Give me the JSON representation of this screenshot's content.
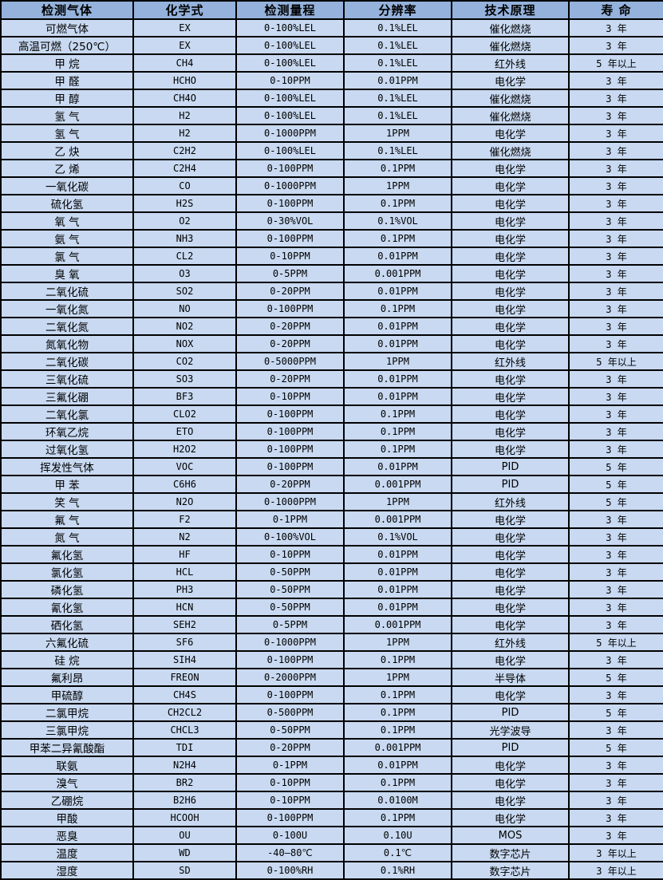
{
  "colors": {
    "header_bg": "#94b2db",
    "row_bg": "#c8d9f1",
    "border": "#000000",
    "text": "#000000"
  },
  "table": {
    "headers": [
      "检测气体",
      "化学式",
      "检测量程",
      "分辨率",
      "技术原理",
      "寿 命"
    ],
    "rows": [
      [
        "可燃气体",
        "EX",
        "0-100%LEL",
        "0.1%LEL",
        "催化燃烧",
        "3 年"
      ],
      [
        "高温可燃（250℃）",
        "EX",
        "0-100%LEL",
        "0.1%LEL",
        "催化燃烧",
        "3 年"
      ],
      [
        "甲 烷",
        "CH4",
        "0-100%LEL",
        "0.1%LEL",
        "红外线",
        "5 年以上"
      ],
      [
        "甲 醛",
        "HCHO",
        "0-10PPM",
        "0.01PPM",
        "电化学",
        "3 年"
      ],
      [
        "甲 醇",
        "CH4O",
        "0-100%LEL",
        "0.1%LEL",
        "催化燃烧",
        "3 年"
      ],
      [
        "氢 气",
        "H2",
        "0-100%LEL",
        "0.1%LEL",
        "催化燃烧",
        "3 年"
      ],
      [
        "氢 气",
        "H2",
        "0-1000PPM",
        "1PPM",
        "电化学",
        "3 年"
      ],
      [
        "乙 炔",
        "C2H2",
        "0-100%LEL",
        "0.1%LEL",
        "催化燃烧",
        "3 年"
      ],
      [
        "乙 烯",
        "C2H4",
        "0-100PPM",
        "0.1PPM",
        "电化学",
        "3 年"
      ],
      [
        "一氧化碳",
        "CO",
        "0-1000PPM",
        "1PPM",
        "电化学",
        "3 年"
      ],
      [
        "硫化氢",
        "H2S",
        "0-100PPM",
        "0.1PPM",
        "电化学",
        "3 年"
      ],
      [
        "氧 气",
        "O2",
        "0-30%VOL",
        "0.1%VOL",
        "电化学",
        "3 年"
      ],
      [
        "氨 气",
        "NH3",
        "0-100PPM",
        "0.1PPM",
        "电化学",
        "3 年"
      ],
      [
        "氯 气",
        "CL2",
        "0-10PPM",
        "0.01PPM",
        "电化学",
        "3 年"
      ],
      [
        "臭 氧",
        "O3",
        "0-5PPM",
        "0.001PPM",
        "电化学",
        "3 年"
      ],
      [
        "二氧化硫",
        "SO2",
        "0-20PPM",
        "0.01PPM",
        "电化学",
        "3 年"
      ],
      [
        "一氧化氮",
        "NO",
        "0-100PPM",
        "0.1PPM",
        "电化学",
        "3 年"
      ],
      [
        "二氧化氮",
        "NO2",
        "0-20PPM",
        "0.01PPM",
        "电化学",
        "3 年"
      ],
      [
        "氮氧化物",
        "NOX",
        "0-20PPM",
        "0.01PPM",
        "电化学",
        "3 年"
      ],
      [
        "二氧化碳",
        "CO2",
        "0-5000PPM",
        "1PPM",
        "红外线",
        "5 年以上"
      ],
      [
        "三氧化硫",
        "SO3",
        "0-20PPM",
        "0.01PPM",
        "电化学",
        "3 年"
      ],
      [
        "三氟化硼",
        "BF3",
        "0-10PPM",
        "0.01PPM",
        "电化学",
        "3 年"
      ],
      [
        "二氧化氯",
        "CLO2",
        "0-100PPM",
        "0.1PPM",
        "电化学",
        "3 年"
      ],
      [
        "环氧乙烷",
        "ETO",
        "0-100PPM",
        "0.1PPM",
        "电化学",
        "3 年"
      ],
      [
        "过氧化氢",
        "H2O2",
        "0-100PPM",
        "0.1PPM",
        "电化学",
        "3 年"
      ],
      [
        "挥发性气体",
        "VOC",
        "0-100PPM",
        "0.01PPM",
        "PID",
        "5 年"
      ],
      [
        "甲 苯",
        "C6H6",
        "0-20PPM",
        "0.001PPM",
        "PID",
        "5 年"
      ],
      [
        "笑 气",
        "N2O",
        "0-1000PPM",
        "1PPM",
        "红外线",
        "5 年"
      ],
      [
        "氟 气",
        "F2",
        "0-1PPM",
        "0.001PPM",
        "电化学",
        "3 年"
      ],
      [
        "氮 气",
        "N2",
        "0-100%VOL",
        "0.1%VOL",
        "电化学",
        "3 年"
      ],
      [
        "氟化氢",
        "HF",
        "0-10PPM",
        "0.01PPM",
        "电化学",
        "3 年"
      ],
      [
        "氯化氢",
        "HCL",
        "0-50PPM",
        "0.01PPM",
        "电化学",
        "3 年"
      ],
      [
        "磷化氢",
        "PH3",
        "0-50PPM",
        "0.01PPM",
        "电化学",
        "3 年"
      ],
      [
        "氰化氢",
        "HCN",
        "0-50PPM",
        "0.01PPM",
        "电化学",
        "3 年"
      ],
      [
        "硒化氢",
        "SEH2",
        "0-5PPM",
        "0.001PPM",
        "电化学",
        "3 年"
      ],
      [
        "六氟化硫",
        "SF6",
        "0-1000PPM",
        "1PPM",
        "红外线",
        "5 年以上"
      ],
      [
        "硅 烷",
        "SIH4",
        "0-100PPM",
        "0.1PPM",
        "电化学",
        "3 年"
      ],
      [
        "氟利昂",
        "FREON",
        "0-2000PPM",
        "1PPM",
        "半导体",
        "5 年"
      ],
      [
        "甲硫醇",
        "CH4S",
        "0-100PPM",
        "0.1PPM",
        "电化学",
        "3 年"
      ],
      [
        "二氯甲烷",
        "CH2CL2",
        "0-500PPM",
        "0.1PPM",
        "PID",
        "5 年"
      ],
      [
        "三氯甲烷",
        "CHCL3",
        "0-50PPM",
        "0.1PPM",
        "光学波导",
        "3 年"
      ],
      [
        "甲苯二异氰酸酯",
        "TDI",
        "0-20PPM",
        "0.001PPM",
        "PID",
        "5 年"
      ],
      [
        "联氨",
        "N2H4",
        "0-1PPM",
        "0.01PPM",
        "电化学",
        "3 年"
      ],
      [
        "溴气",
        "BR2",
        "0-10PPM",
        "0.1PPM",
        "电化学",
        "3 年"
      ],
      [
        "乙硼烷",
        "B2H6",
        "0-10PPM",
        "0.0100M",
        "电化学",
        "3 年"
      ],
      [
        "甲酸",
        "HCOOH",
        "0-100PPM",
        "0.1PPM",
        "电化学",
        "3 年"
      ],
      [
        "恶臭",
        "OU",
        "0-100U",
        "0.10U",
        "MOS",
        "3 年"
      ],
      [
        "温度",
        "WD",
        "-40—80℃",
        "0.1℃",
        "数字芯片",
        "3 年以上"
      ],
      [
        "湿度",
        "SD",
        "0-100%RH",
        "0.1%RH",
        "数字芯片",
        "3 年以上"
      ]
    ],
    "column_names": [
      "gas-name",
      "formula",
      "range",
      "resolution",
      "principle",
      "lifespan"
    ]
  }
}
